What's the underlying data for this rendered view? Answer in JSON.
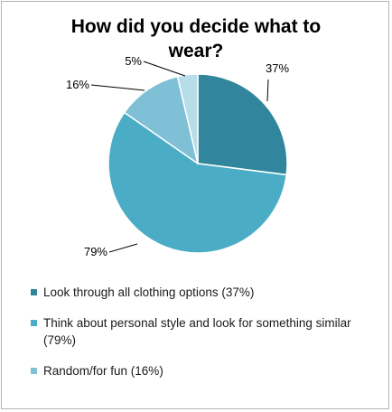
{
  "chart_data": {
    "type": "pie",
    "title_lines": [
      "How did you decide what to",
      "wear?"
    ],
    "slices": [
      {
        "label": "Look through all clothing options (37%)",
        "data_label": "37%",
        "value": 37,
        "color": "#31859c"
      },
      {
        "label": "Think about personal style and look for something similar (79%)",
        "data_label": "79%",
        "value": 79,
        "color": "#4bacc6"
      },
      {
        "label": "Random/for fun (16%)",
        "data_label": "16%",
        "value": 16,
        "color": "#7fc0d6"
      },
      {
        "label": "",
        "data_label": "5%",
        "value": 5,
        "color": "#b6dde8"
      }
    ],
    "legend": [
      {
        "text": "Look through all clothing options (37%)",
        "color": "#31859c"
      },
      {
        "text": "Think about personal style and look for something similar (79%)",
        "color": "#4bacc6"
      },
      {
        "text": "Random/for fun (16%)",
        "color": "#7fc0d6"
      }
    ],
    "legend_position": "bottom"
  }
}
